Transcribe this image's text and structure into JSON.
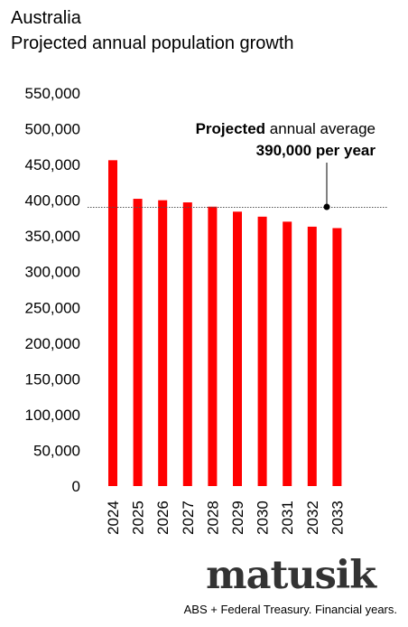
{
  "header": {
    "title": "Australia",
    "subtitle": "Projected annual population growth"
  },
  "annotation": {
    "line1_bold": "Projected",
    "line1_rest": " annual average",
    "line2": "390,000 per year"
  },
  "footer": {
    "brand": "matusik",
    "source": "ABS + Federal Treasury.  Financial years."
  },
  "colors": {
    "bar": "#ff0000",
    "reference_line": "#555555"
  },
  "chart_data": {
    "type": "bar",
    "categories": [
      "2024",
      "2025",
      "2026",
      "2027",
      "2028",
      "2029",
      "2030",
      "2031",
      "2032",
      "2033"
    ],
    "values": [
      456000,
      402000,
      400000,
      397000,
      391000,
      384000,
      377000,
      370000,
      363000,
      361000
    ],
    "ylim": [
      0,
      550000
    ],
    "yticks": [
      0,
      50000,
      100000,
      150000,
      200000,
      250000,
      300000,
      350000,
      400000,
      450000,
      500000,
      550000
    ],
    "ytick_labels": [
      "0",
      "50,000",
      "100,000",
      "150,000",
      "200,000",
      "250,000",
      "300,000",
      "350,000",
      "400,000",
      "450,000",
      "500,000",
      "550,000"
    ],
    "reference_value": 390000,
    "grid": false,
    "legend": "none"
  }
}
